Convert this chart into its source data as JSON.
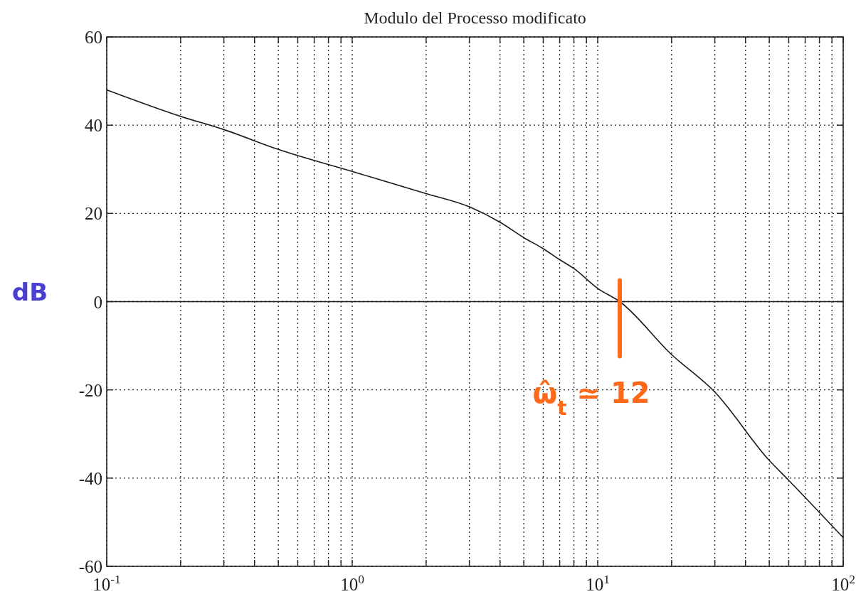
{
  "chart_data": {
    "type": "line",
    "title": "Modulo del Processo modificato",
    "ylabel": "dB",
    "log": "x",
    "x": [
      0.1,
      0.2,
      0.3,
      0.5,
      1,
      2,
      3,
      4,
      5,
      6,
      7,
      8,
      10,
      12.3,
      20,
      30,
      50,
      60,
      100
    ],
    "series": [
      {
        "color": "#1a1a1a",
        "values": [
          48,
          42,
          39,
          34.5,
          29.5,
          24.5,
          21.5,
          18,
          14.5,
          12,
          9.5,
          7.5,
          3,
          0,
          -12,
          -20.5,
          -36,
          -40.5,
          -53.5
        ]
      }
    ],
    "xlim": [
      0.1,
      100
    ],
    "xticks": [
      {
        "value": 0.1,
        "label": "10$^{-1}$"
      },
      {
        "value": 0.2,
        "label": null
      },
      {
        "value": 0.3,
        "label": null
      },
      {
        "value": 0.4,
        "label": null
      },
      {
        "value": 0.5,
        "label": null
      },
      {
        "value": 0.6,
        "label": null
      },
      {
        "value": 0.7,
        "label": null
      },
      {
        "value": 0.8,
        "label": null
      },
      {
        "value": 0.9,
        "label": null
      },
      {
        "value": 1,
        "label": "10$^{0}$"
      },
      {
        "value": 2,
        "label": null
      },
      {
        "value": 3,
        "label": null
      },
      {
        "value": 4,
        "label": null
      },
      {
        "value": 5,
        "label": null
      },
      {
        "value": 6,
        "label": null
      },
      {
        "value": 7,
        "label": null
      },
      {
        "value": 8,
        "label": null
      },
      {
        "value": 9,
        "label": null
      },
      {
        "value": 10,
        "label": "10$^{1}$"
      },
      {
        "value": 20,
        "label": null
      },
      {
        "value": 30,
        "label": null
      },
      {
        "value": 40,
        "label": null
      },
      {
        "value": 50,
        "label": null
      },
      {
        "value": 60,
        "label": null
      },
      {
        "value": 70,
        "label": null
      },
      {
        "value": 80,
        "label": null
      },
      {
        "value": 90,
        "label": null
      },
      {
        "value": 100,
        "label": "10$^{2}$"
      }
    ],
    "ylim": [
      -60,
      60
    ],
    "yticks": [
      -60,
      -40,
      -20,
      0,
      20,
      40,
      60
    ],
    "grid": true,
    "line_style": "solid",
    "marker": "none",
    "ref_lines": [
      {
        "axis": "y",
        "value": 0,
        "color": "#1a1a1a",
        "line_style": "solid"
      }
    ],
    "annotations": [
      {
        "text": "ω̂$_{t}$ ≃ 12",
        "x": 12.3,
        "y": 0
      }
    ]
  }
}
